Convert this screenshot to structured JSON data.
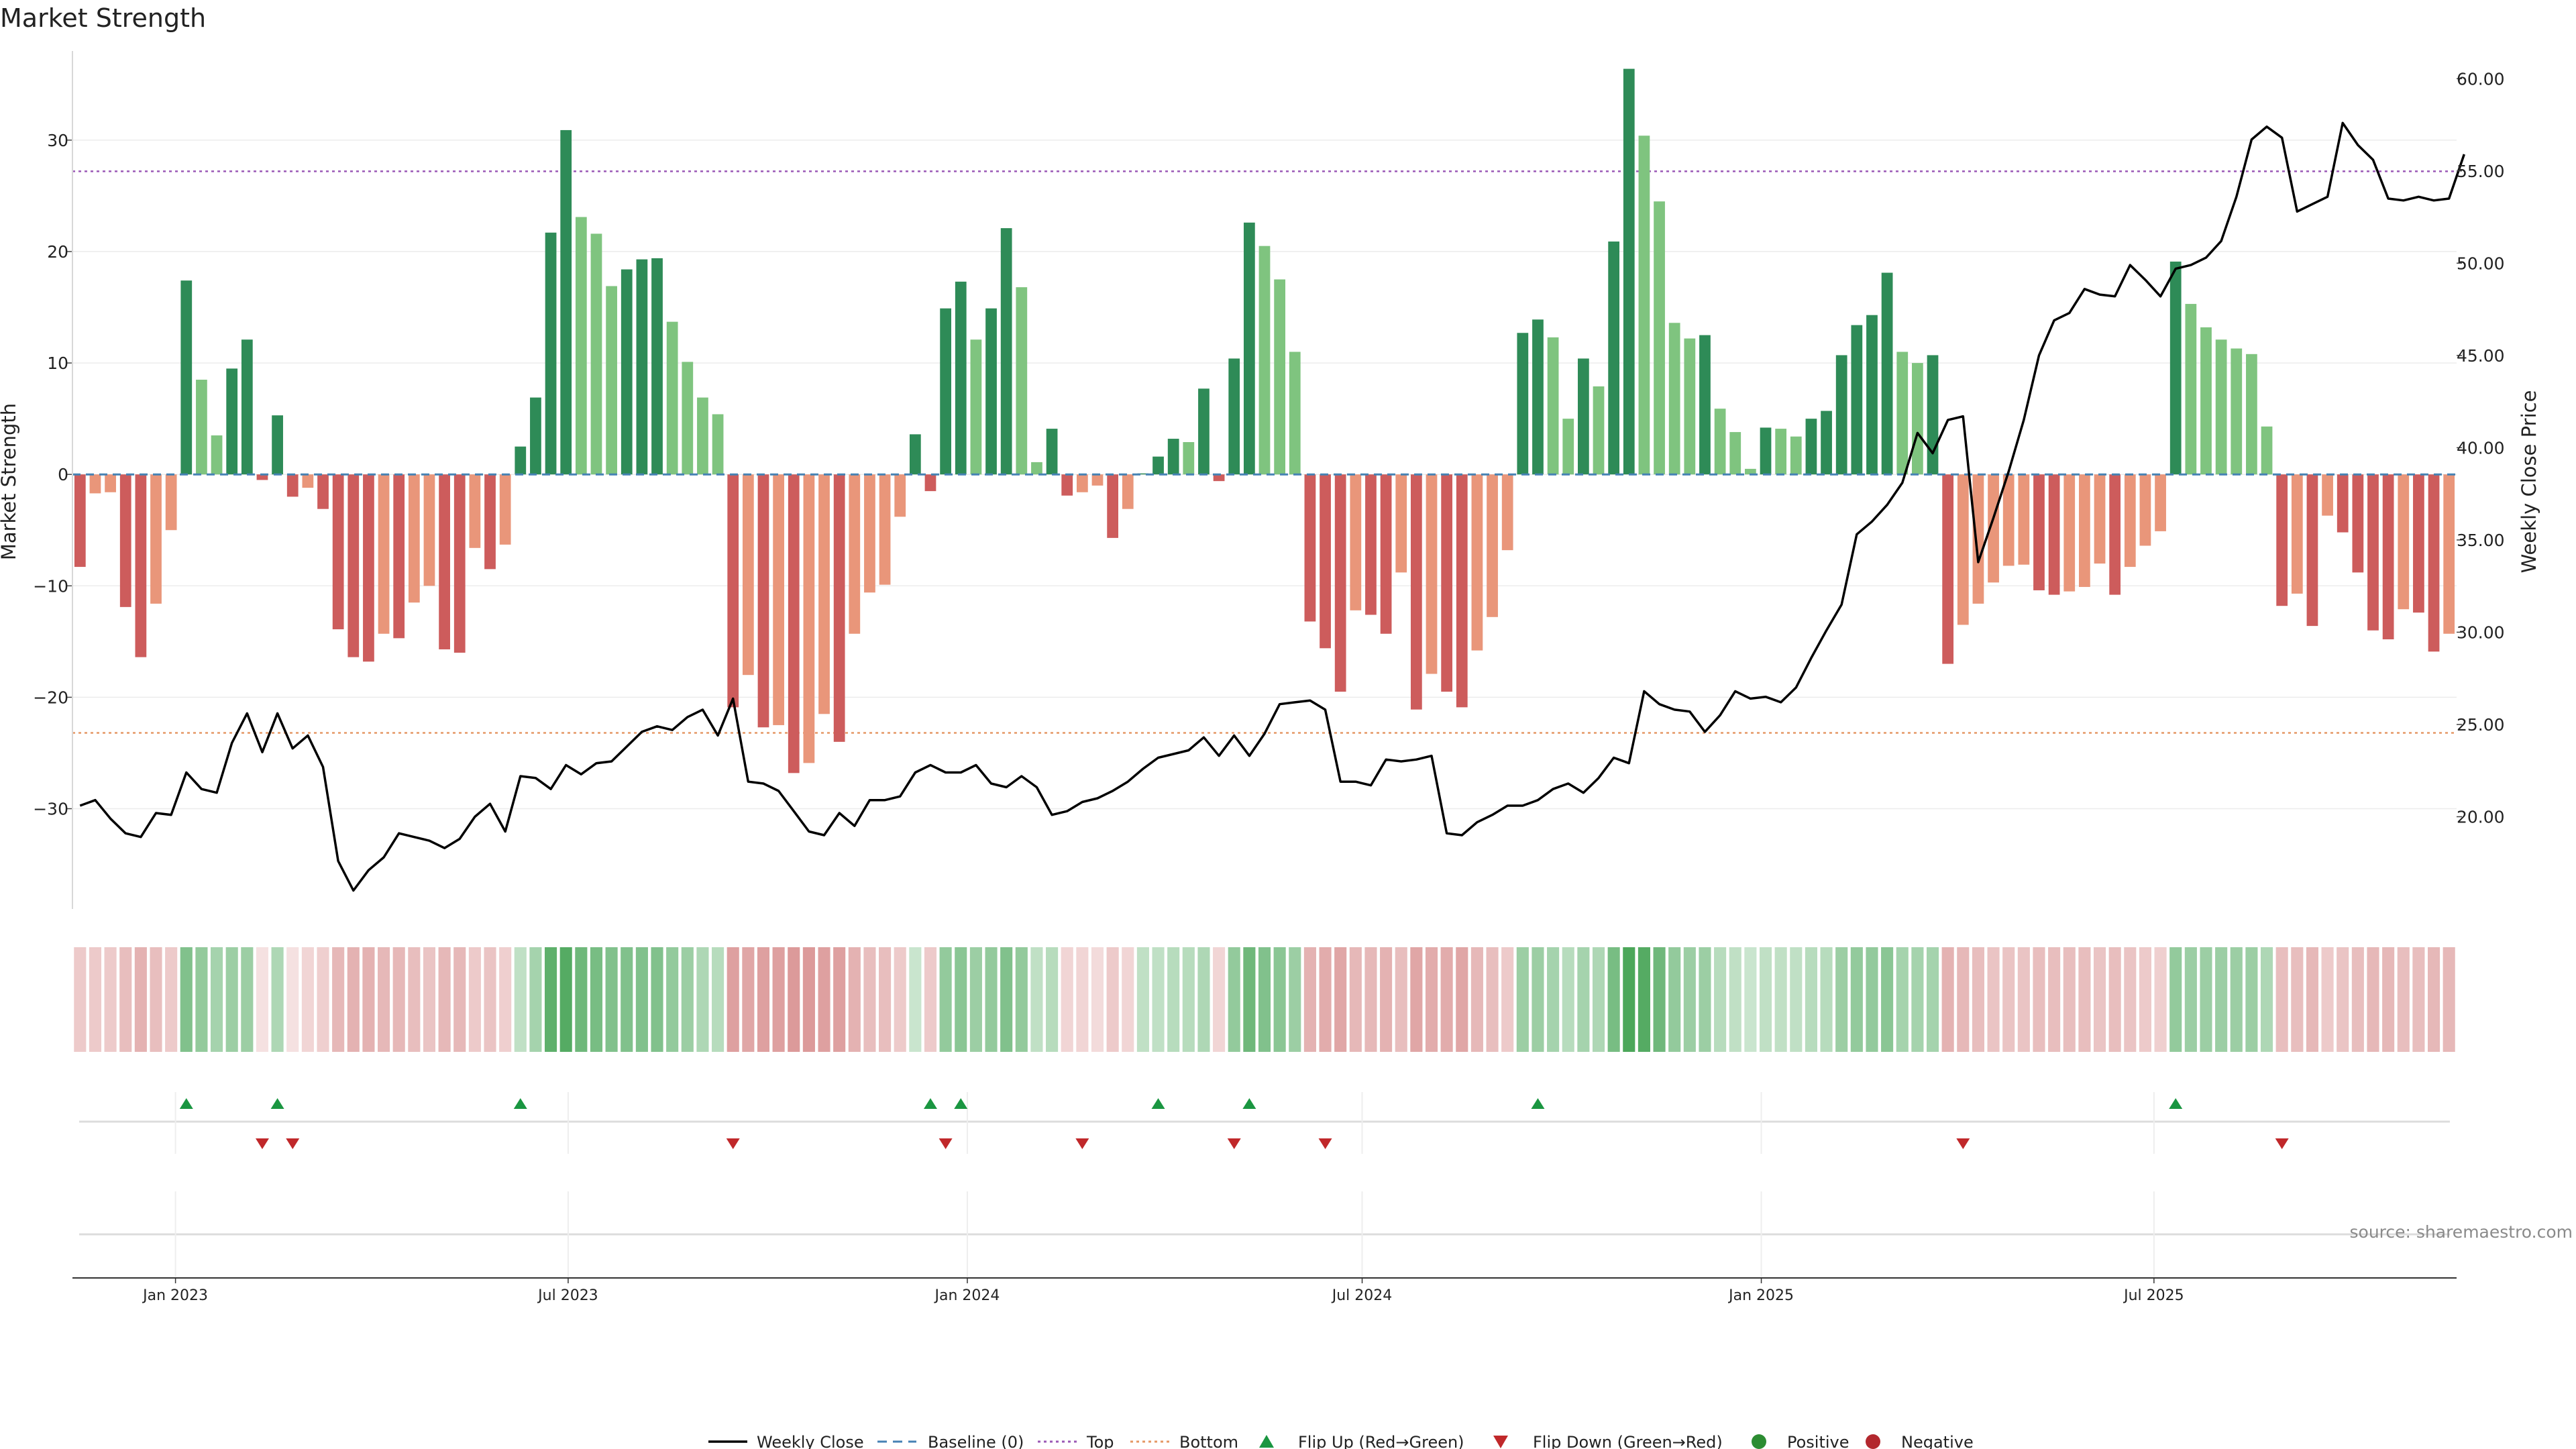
{
  "chart_data": {
    "type": "bar",
    "title": "Market Strength",
    "ylabel": "Market Strength",
    "y2label": "Weekly Close Price",
    "ylim": [
      -39,
      38
    ],
    "y2lim": [
      15,
      61.5
    ],
    "yticks": [
      30,
      20,
      10,
      0,
      -10,
      -20,
      -30
    ],
    "ytick_labels": [
      "30",
      "20",
      "10",
      "0",
      "−10",
      "−20",
      "−30"
    ],
    "y2ticks": [
      60,
      55,
      50,
      45,
      40,
      35,
      30,
      25,
      20
    ],
    "y2tick_labels": [
      "60.00",
      "55.00",
      "50.00",
      "45.00",
      "40.00",
      "35.00",
      "30.00",
      "25.00",
      "20.00"
    ],
    "top_line": 27.2,
    "bottom_line": -23.2,
    "x_start": "2022-11-18",
    "x_end": "2025-11-14",
    "date_ticks": [
      {
        "date": "2023-01-01",
        "label": "Jan 2023"
      },
      {
        "date": "2023-07-01",
        "label": "Jul 2023"
      },
      {
        "date": "2024-01-01",
        "label": "Jan 2024"
      },
      {
        "date": "2024-07-01",
        "label": "Jul 2024"
      },
      {
        "date": "2025-01-01",
        "label": "Jan 2025"
      },
      {
        "date": "2025-07-01",
        "label": "Jul 2025"
      }
    ],
    "strength": [
      -8.3,
      -1.7,
      -1.6,
      -11.9,
      -16.4,
      -11.6,
      -5.0,
      17.4,
      8.5,
      3.5,
      9.5,
      12.1,
      -0.5,
      5.3,
      -2.0,
      -1.2,
      -3.1,
      -13.9,
      -16.4,
      -16.8,
      -14.3,
      -14.7,
      -11.5,
      -10.0,
      -15.7,
      -16.0,
      -6.6,
      -8.5,
      -6.3,
      2.5,
      6.9,
      21.7,
      30.9,
      23.1,
      21.6,
      16.9,
      18.4,
      19.3,
      19.4,
      13.7,
      10.1,
      6.9,
      5.4,
      -20.9,
      -18.0,
      -22.7,
      -22.5,
      -26.8,
      -25.9,
      -21.5,
      -24.0,
      -14.3,
      -10.6,
      -9.9,
      -3.8,
      3.6,
      -1.5,
      14.9,
      17.3,
      12.1,
      14.9,
      22.1,
      16.8,
      1.1,
      4.1,
      -1.9,
      -1.6,
      -1.0,
      -5.7,
      -3.1,
      0.0,
      1.6,
      3.2,
      2.9,
      7.7,
      -0.6,
      10.4,
      22.6,
      20.5,
      17.5,
      11.0,
      -13.2,
      -15.6,
      -19.5,
      -12.2,
      -12.6,
      -14.3,
      -8.8,
      -21.1,
      -17.9,
      -19.5,
      -20.9,
      -15.8,
      -12.8,
      -6.8,
      12.7,
      13.9,
      12.3,
      5.0,
      10.4,
      7.9,
      20.9,
      36.4,
      30.4,
      24.5,
      13.6,
      12.2,
      12.5,
      5.9,
      3.8,
      0.5,
      4.2,
      4.1,
      3.4,
      5.0,
      5.7,
      10.7,
      13.4,
      14.3,
      18.1,
      11.0,
      10.0,
      10.7,
      -17.0,
      -13.5,
      -11.6,
      -9.7,
      -8.2,
      -8.1,
      -10.4,
      -10.8,
      -10.5,
      -10.1,
      -8.0,
      -10.8,
      -8.3,
      -6.4,
      -5.1,
      19.1,
      15.3,
      13.2,
      12.1,
      11.3,
      10.8,
      4.3,
      -11.8,
      -10.7,
      -13.6,
      -3.7,
      -5.2,
      -8.8,
      -14.0,
      -14.8,
      -12.1,
      -12.4,
      -15.9,
      -14.3
    ],
    "close": [
      20.6,
      20.9,
      19.9,
      19.1,
      18.9,
      20.2,
      20.1,
      22.4,
      21.5,
      21.3,
      24.0,
      25.6,
      23.5,
      25.6,
      23.7,
      24.4,
      22.7,
      17.6,
      16.0,
      17.1,
      17.8,
      19.1,
      18.9,
      18.7,
      18.3,
      18.8,
      20.0,
      20.7,
      19.2,
      22.2,
      22.1,
      21.5,
      22.8,
      22.3,
      22.9,
      23.0,
      23.8,
      24.6,
      24.9,
      24.7,
      25.4,
      25.8,
      24.4,
      26.4,
      21.9,
      21.8,
      21.4,
      20.3,
      19.2,
      19.0,
      20.2,
      19.5,
      20.9,
      20.9,
      21.1,
      22.4,
      22.8,
      22.4,
      22.4,
      22.8,
      21.8,
      21.6,
      22.2,
      21.6,
      20.1,
      20.3,
      20.8,
      21.0,
      21.4,
      21.9,
      22.6,
      23.2,
      23.4,
      23.6,
      24.3,
      23.3,
      24.4,
      23.3,
      24.5,
      26.1,
      26.2,
      26.3,
      25.8,
      21.9,
      21.9,
      21.7,
      23.1,
      23.0,
      23.1,
      23.3,
      19.1,
      19.0,
      19.7,
      20.1,
      20.6,
      20.6,
      20.9,
      21.5,
      21.8,
      21.3,
      22.1,
      23.2,
      22.9,
      26.8,
      26.1,
      25.8,
      25.7,
      24.6,
      25.5,
      26.8,
      26.4,
      26.5,
      26.2,
      27.0,
      28.6,
      30.1,
      31.5,
      35.3,
      36.0,
      36.9,
      38.1,
      40.8,
      39.7,
      41.5,
      41.7,
      33.8,
      36.2,
      38.7,
      41.5,
      45.0,
      46.9,
      47.3,
      48.6,
      48.3,
      48.2,
      49.9,
      49.1,
      48.2,
      49.7,
      49.9,
      50.3,
      51.2,
      53.6,
      56.7,
      57.4,
      56.8,
      52.8,
      53.2,
      53.6,
      57.6,
      56.4,
      55.6,
      53.5,
      53.4,
      53.6,
      53.4,
      53.5,
      55.9
    ],
    "heat_intensity": [
      0.45,
      0.45,
      0.45,
      0.55,
      0.65,
      0.55,
      0.45,
      0.7,
      0.6,
      0.5,
      0.55,
      0.55,
      0.25,
      0.45,
      0.25,
      0.35,
      0.4,
      0.6,
      0.65,
      0.65,
      0.6,
      0.6,
      0.55,
      0.5,
      0.6,
      0.6,
      0.45,
      0.5,
      0.4,
      0.35,
      0.5,
      0.9,
      0.95,
      0.8,
      0.75,
      0.7,
      0.7,
      0.7,
      0.7,
      0.6,
      0.55,
      0.45,
      0.4,
      0.8,
      0.75,
      0.8,
      0.8,
      0.85,
      0.85,
      0.8,
      0.8,
      0.65,
      0.55,
      0.55,
      0.45,
      0.3,
      0.45,
      0.6,
      0.65,
      0.55,
      0.6,
      0.7,
      0.6,
      0.35,
      0.4,
      0.35,
      0.35,
      0.3,
      0.45,
      0.35,
      0.35,
      0.35,
      0.4,
      0.4,
      0.45,
      0.35,
      0.6,
      0.8,
      0.7,
      0.65,
      0.55,
      0.65,
      0.7,
      0.75,
      0.6,
      0.6,
      0.65,
      0.55,
      0.75,
      0.7,
      0.7,
      0.75,
      0.6,
      0.55,
      0.45,
      0.55,
      0.55,
      0.5,
      0.4,
      0.5,
      0.45,
      0.75,
      1.0,
      0.95,
      0.8,
      0.6,
      0.55,
      0.55,
      0.4,
      0.35,
      0.3,
      0.35,
      0.35,
      0.35,
      0.4,
      0.4,
      0.55,
      0.6,
      0.6,
      0.65,
      0.5,
      0.5,
      0.5,
      0.65,
      0.6,
      0.55,
      0.5,
      0.5,
      0.5,
      0.55,
      0.55,
      0.55,
      0.55,
      0.5,
      0.55,
      0.5,
      0.45,
      0.4,
      0.6,
      0.55,
      0.55,
      0.55,
      0.55,
      0.55,
      0.45,
      0.55,
      0.55,
      0.6,
      0.45,
      0.5,
      0.55,
      0.6,
      0.6,
      0.55,
      0.55,
      0.6,
      0.6
    ],
    "flip_up_weeks": [
      7,
      13,
      29,
      56,
      58,
      71,
      77,
      96,
      138
    ],
    "flip_down_weeks": [
      12,
      14,
      43,
      57,
      66,
      76,
      82,
      124,
      145
    ],
    "colors": {
      "pos_strong": "#2e8b57",
      "pos_weak": "#7fc47f",
      "neg_strong": "#cd5c5c",
      "neg_weak": "#e9967a",
      "close_line": "#000000",
      "top_line": "#9b59b6",
      "bottom_line": "#e59866",
      "baseline": "#4682b4",
      "flip_up": "#1a9641",
      "flip_down": "#c0282a",
      "positive_dot": "#2c8c32",
      "negative_dot": "#b3282e",
      "heat_green": "#3c9f4c",
      "heat_red": "#c65a5a"
    },
    "legend": [
      {
        "label": "Weekly Close",
        "symbol": "line"
      },
      {
        "label": "Baseline (0)",
        "symbol": "dash"
      },
      {
        "label": "Top",
        "symbol": "dotted-purple"
      },
      {
        "label": "Bottom",
        "symbol": "dotted-orange"
      },
      {
        "label": "Flip Up (Red→Green)",
        "symbol": "triangle-up"
      },
      {
        "label": "Flip Down (Green→Red)",
        "symbol": "triangle-down"
      },
      {
        "label": "Positive",
        "symbol": "dot-green"
      },
      {
        "label": "Negative",
        "symbol": "dot-red"
      }
    ],
    "source": "source: sharemaestro.com"
  }
}
